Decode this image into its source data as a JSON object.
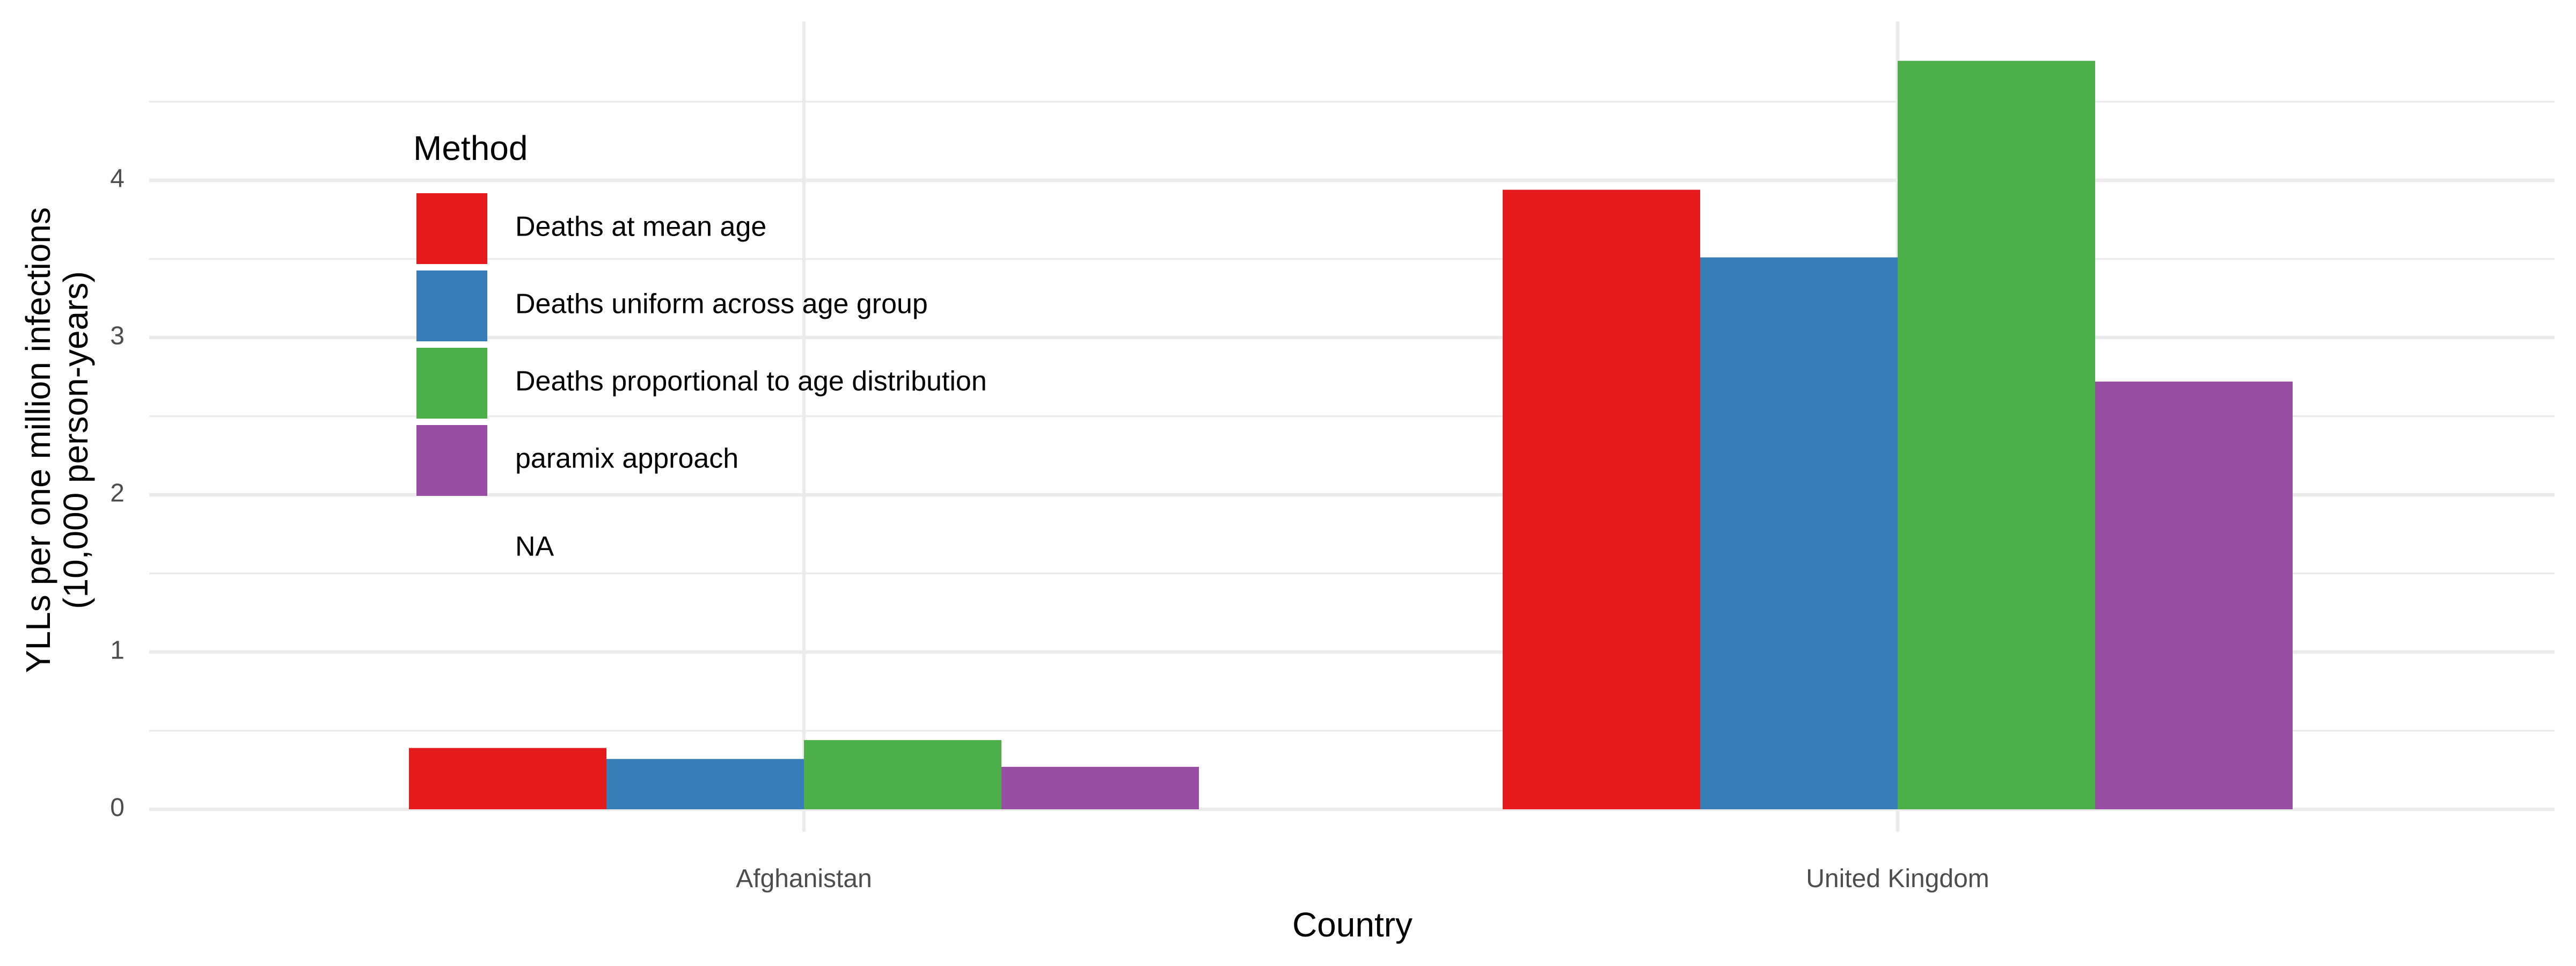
{
  "chart_data": {
    "type": "bar",
    "categories": [
      "Afghanistan",
      "United Kingdom"
    ],
    "series": [
      {
        "name": "Deaths at mean age",
        "color": "#E41A1C",
        "values": [
          0.39,
          3.94
        ]
      },
      {
        "name": "Deaths uniform across age group",
        "color": "#377EB8",
        "values": [
          0.32,
          3.51
        ]
      },
      {
        "name": "Deaths proportional to age distribution",
        "color": "#4DAF4A",
        "values": [
          0.44,
          4.76
        ]
      },
      {
        "name": "paramix approach",
        "color": "#984EA3",
        "values": [
          0.27,
          2.72
        ]
      }
    ],
    "legend": {
      "title": "Method",
      "extra_entry": "NA",
      "placement": "inside top-left"
    },
    "xlabel": "Country",
    "ylabel_line1": "YLLs per one million infections",
    "ylabel_line2": "(10,000 person-years)",
    "ylim": [
      0,
      5
    ],
    "yticks": [
      0,
      1,
      2,
      3,
      4
    ],
    "grid": true
  }
}
